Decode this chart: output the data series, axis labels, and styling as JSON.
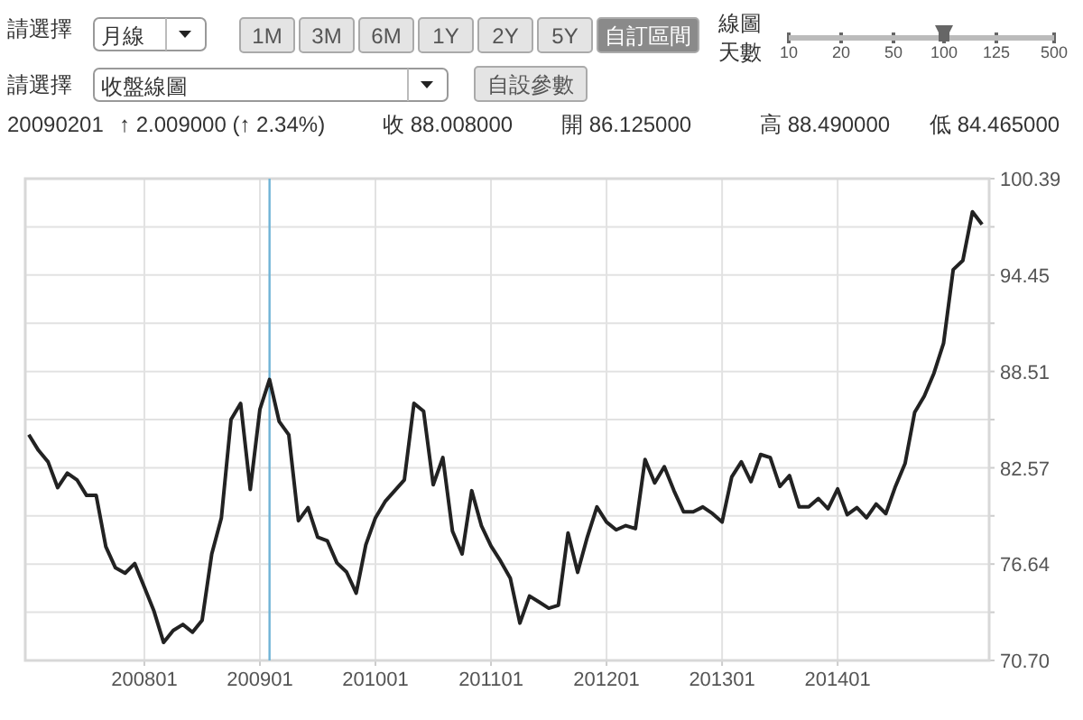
{
  "chart_data": {
    "type": "line",
    "annotations": [
      "請選擇",
      "月線",
      "1M",
      "3M",
      "6M",
      "1Y",
      "2Y",
      "5Y",
      "自訂區間",
      "線圖",
      "天數",
      "10",
      "20",
      "50",
      "100",
      "125",
      "500",
      "請選擇",
      "收盤線圖",
      "自設參數",
      "20090201",
      "↑ 2.009000 (↑ 2.34%)",
      "收 88.008000",
      "開 86.125000",
      "高 88.490000",
      "低 84.465000"
    ],
    "x": [
      "2007-01",
      "2007-02",
      "2007-03",
      "2007-04",
      "2007-05",
      "2007-06",
      "2007-07",
      "2007-08",
      "2007-09",
      "2007-10",
      "2007-11",
      "2007-12",
      "2008-01",
      "2008-02",
      "2008-03",
      "2008-04",
      "2008-05",
      "2008-06",
      "2008-07",
      "2008-08",
      "2008-09",
      "2008-10",
      "2008-11",
      "2008-12",
      "2009-01",
      "2009-02",
      "2009-03",
      "2009-04",
      "2009-05",
      "2009-06",
      "2009-07",
      "2009-08",
      "2009-09",
      "2009-10",
      "2009-11",
      "2009-12",
      "2010-01",
      "2010-02",
      "2010-03",
      "2010-04",
      "2010-05",
      "2010-06",
      "2010-07",
      "2010-08",
      "2010-09",
      "2010-10",
      "2010-11",
      "2010-12",
      "2011-01",
      "2011-02",
      "2011-03",
      "2011-04",
      "2011-05",
      "2011-06",
      "2011-07",
      "2011-08",
      "2011-09",
      "2011-10",
      "2011-11",
      "2011-12",
      "2012-01",
      "2012-02",
      "2012-03",
      "2012-04",
      "2012-05",
      "2012-06",
      "2012-07",
      "2012-08",
      "2012-09",
      "2012-10",
      "2012-11",
      "2012-12",
      "2013-01",
      "2013-02",
      "2013-03",
      "2013-04",
      "2013-05",
      "2013-06",
      "2013-07",
      "2013-08",
      "2013-09",
      "2013-10",
      "2013-11",
      "2013-12",
      "2014-01",
      "2014-02",
      "2014-03",
      "2014-04",
      "2014-05",
      "2014-06",
      "2014-07",
      "2014-08",
      "2014-09",
      "2014-10",
      "2014-11",
      "2014-12",
      "2015-01",
      "2015-02",
      "2015-03",
      "2015-04"
    ],
    "series": [
      {
        "color": "#222222",
        "values": [
          84.61,
          83.65,
          82.94,
          81.35,
          82.24,
          81.83,
          80.87,
          80.87,
          77.71,
          76.41,
          76.08,
          76.67,
          75.22,
          73.74,
          71.81,
          72.55,
          72.92,
          72.44,
          73.18,
          77.26,
          79.49,
          85.54,
          86.54,
          81.24,
          86.17,
          88.01,
          85.43,
          84.61,
          79.31,
          80.12,
          78.3,
          78.08,
          76.71,
          76.15,
          74.85,
          77.82,
          79.49,
          80.49,
          81.16,
          81.83,
          86.54,
          86.06,
          81.53,
          83.2,
          78.67,
          77.26,
          81.16,
          79.01,
          77.75,
          76.82,
          75.78,
          73.0,
          74.67,
          74.3,
          73.92,
          74.1,
          78.55,
          76.13,
          78.3,
          80.16,
          79.23,
          78.75,
          79.01,
          78.82,
          83.09,
          81.64,
          82.64,
          81.16,
          79.86,
          79.86,
          80.16,
          79.75,
          79.23,
          82.01,
          82.94,
          81.72,
          83.39,
          83.2,
          81.42,
          82.09,
          80.16,
          80.16,
          80.68,
          80.05,
          81.27,
          79.68,
          80.12,
          79.49,
          80.34,
          79.75,
          81.42,
          82.83,
          85.99,
          86.99,
          88.4,
          90.25,
          94.78,
          95.34,
          98.35,
          97.57
        ]
      }
    ],
    "xlim": [
      "2006-12-20",
      "2015-04-23"
    ],
    "xticks": [
      {
        "value": "2008-01",
        "label": "200801"
      },
      {
        "value": "2009-01",
        "label": "200901"
      },
      {
        "value": "2010-01",
        "label": "201001"
      },
      {
        "value": "2011-01",
        "label": "201101"
      },
      {
        "value": "2012-01",
        "label": "201201"
      },
      {
        "value": "2013-01",
        "label": "201301"
      },
      {
        "value": "2014-01",
        "label": "201401"
      }
    ],
    "ylim": [
      70.7,
      100.39
    ],
    "yticks": [
      {
        "value": 70.7,
        "label": "70.70"
      },
      {
        "value": 73.67,
        "label": null
      },
      76.64,
      {
        "value": 79.61,
        "label": null
      },
      82.57,
      {
        "value": 85.54,
        "label": null
      },
      88.51,
      {
        "value": 91.48,
        "label": null
      },
      94.45,
      {
        "value": 97.42,
        "label": null
      },
      100.39
    ],
    "grid": true,
    "ref_lines": [
      {
        "axis": "x",
        "value": "2009-02",
        "color": "#6fb3d6"
      }
    ]
  }
}
